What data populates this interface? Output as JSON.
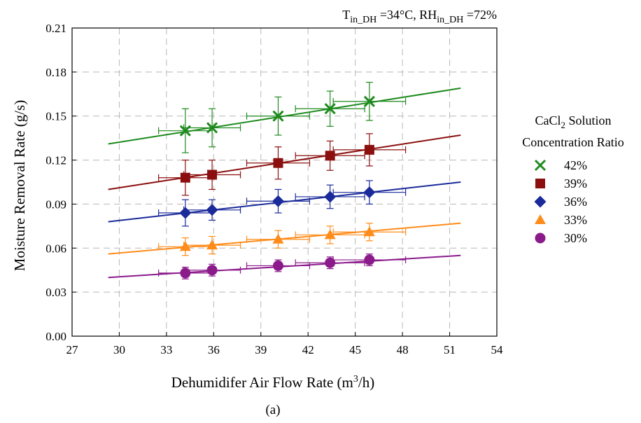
{
  "chart_data": {
    "type": "scatter",
    "annotation": {
      "t_main": "T",
      "t_sub": "in_DH",
      "t_val": " =34°C, ",
      "rh_main": "RH",
      "rh_sub": "in_DH",
      "rh_val": " =72%"
    },
    "xlabel_main": "Dehumidifer Air Flow Rate (m",
    "xlabel_sup": "3",
    "xlabel_tail": "/h)",
    "ylabel": "Moisture Removal Rate (g/s)",
    "xlim": [
      27,
      54
    ],
    "ylim": [
      0,
      0.21
    ],
    "x_ticks": [
      27,
      30,
      33,
      36,
      39,
      42,
      45,
      48,
      51,
      54
    ],
    "x_tick_labels": [
      "27",
      "30",
      "33",
      "36",
      "39",
      "42",
      "45",
      "48",
      "51",
      "54"
    ],
    "y_ticks": [
      0,
      0.03,
      0.06,
      0.09,
      0.12,
      0.15,
      0.18,
      0.21
    ],
    "y_tick_labels": [
      "0.00",
      "0.03",
      "0.06",
      "0.09",
      "0.12",
      "0.15",
      "0.18",
      "0.21"
    ],
    "grid": true,
    "legend_title_main": "CaCl",
    "legend_title_sub": "2",
    "legend_title_tail": " Solution",
    "legend_title_line2": "Concentration Ratio",
    "legend_position": "right",
    "caption": "(a)",
    "series": [
      {
        "name": "42%",
        "marker": "x",
        "color": "#1e8a1e",
        "points": [
          {
            "x": 34.2,
            "y": 0.14,
            "xerr": 1.7,
            "yerr": 0.015
          },
          {
            "x": 35.9,
            "y": 0.142,
            "xerr": 1.8,
            "yerr": 0.013
          },
          {
            "x": 40.1,
            "y": 0.15,
            "xerr": 2.0,
            "yerr": 0.013
          },
          {
            "x": 43.4,
            "y": 0.155,
            "xerr": 2.2,
            "yerr": 0.012
          },
          {
            "x": 45.9,
            "y": 0.16,
            "xerr": 2.3,
            "yerr": 0.013
          }
        ],
        "fit": [
          [
            29.3,
            0.131
          ],
          [
            51.7,
            0.169
          ]
        ]
      },
      {
        "name": "39%",
        "marker": "square",
        "color": "#8b0f0f",
        "points": [
          {
            "x": 34.2,
            "y": 0.108,
            "xerr": 1.7,
            "yerr": 0.012
          },
          {
            "x": 35.9,
            "y": 0.11,
            "xerr": 1.8,
            "yerr": 0.01
          },
          {
            "x": 40.1,
            "y": 0.118,
            "xerr": 2.0,
            "yerr": 0.011
          },
          {
            "x": 43.4,
            "y": 0.123,
            "xerr": 2.2,
            "yerr": 0.01
          },
          {
            "x": 45.9,
            "y": 0.127,
            "xerr": 2.3,
            "yerr": 0.011
          }
        ],
        "fit": [
          [
            29.3,
            0.1
          ],
          [
            51.7,
            0.137
          ]
        ]
      },
      {
        "name": "36%",
        "marker": "diamond",
        "color": "#1a2a9a",
        "points": [
          {
            "x": 34.2,
            "y": 0.084,
            "xerr": 1.7,
            "yerr": 0.009
          },
          {
            "x": 35.9,
            "y": 0.086,
            "xerr": 1.8,
            "yerr": 0.007
          },
          {
            "x": 40.1,
            "y": 0.092,
            "xerr": 2.0,
            "yerr": 0.008
          },
          {
            "x": 43.4,
            "y": 0.095,
            "xerr": 2.2,
            "yerr": 0.008
          },
          {
            "x": 45.9,
            "y": 0.098,
            "xerr": 2.3,
            "yerr": 0.008
          }
        ],
        "fit": [
          [
            29.3,
            0.078
          ],
          [
            51.7,
            0.105
          ]
        ]
      },
      {
        "name": "33%",
        "marker": "triangle",
        "color": "#ff8c1a",
        "points": [
          {
            "x": 34.2,
            "y": 0.061,
            "xerr": 1.7,
            "yerr": 0.006
          },
          {
            "x": 35.9,
            "y": 0.062,
            "xerr": 1.8,
            "yerr": 0.006
          },
          {
            "x": 40.1,
            "y": 0.066,
            "xerr": 2.0,
            "yerr": 0.006
          },
          {
            "x": 43.4,
            "y": 0.069,
            "xerr": 2.2,
            "yerr": 0.006
          },
          {
            "x": 45.9,
            "y": 0.071,
            "xerr": 2.3,
            "yerr": 0.006
          }
        ],
        "fit": [
          [
            29.3,
            0.056
          ],
          [
            51.7,
            0.077
          ]
        ]
      },
      {
        "name": "30%",
        "marker": "circle",
        "color": "#8b1a8b",
        "points": [
          {
            "x": 34.2,
            "y": 0.043,
            "xerr": 1.7,
            "yerr": 0.004
          },
          {
            "x": 35.9,
            "y": 0.045,
            "xerr": 1.8,
            "yerr": 0.004
          },
          {
            "x": 40.1,
            "y": 0.048,
            "xerr": 2.0,
            "yerr": 0.004
          },
          {
            "x": 43.4,
            "y": 0.05,
            "xerr": 2.2,
            "yerr": 0.004
          },
          {
            "x": 45.9,
            "y": 0.052,
            "xerr": 2.3,
            "yerr": 0.004
          }
        ],
        "fit": [
          [
            29.3,
            0.04
          ],
          [
            51.7,
            0.055
          ]
        ]
      }
    ]
  }
}
